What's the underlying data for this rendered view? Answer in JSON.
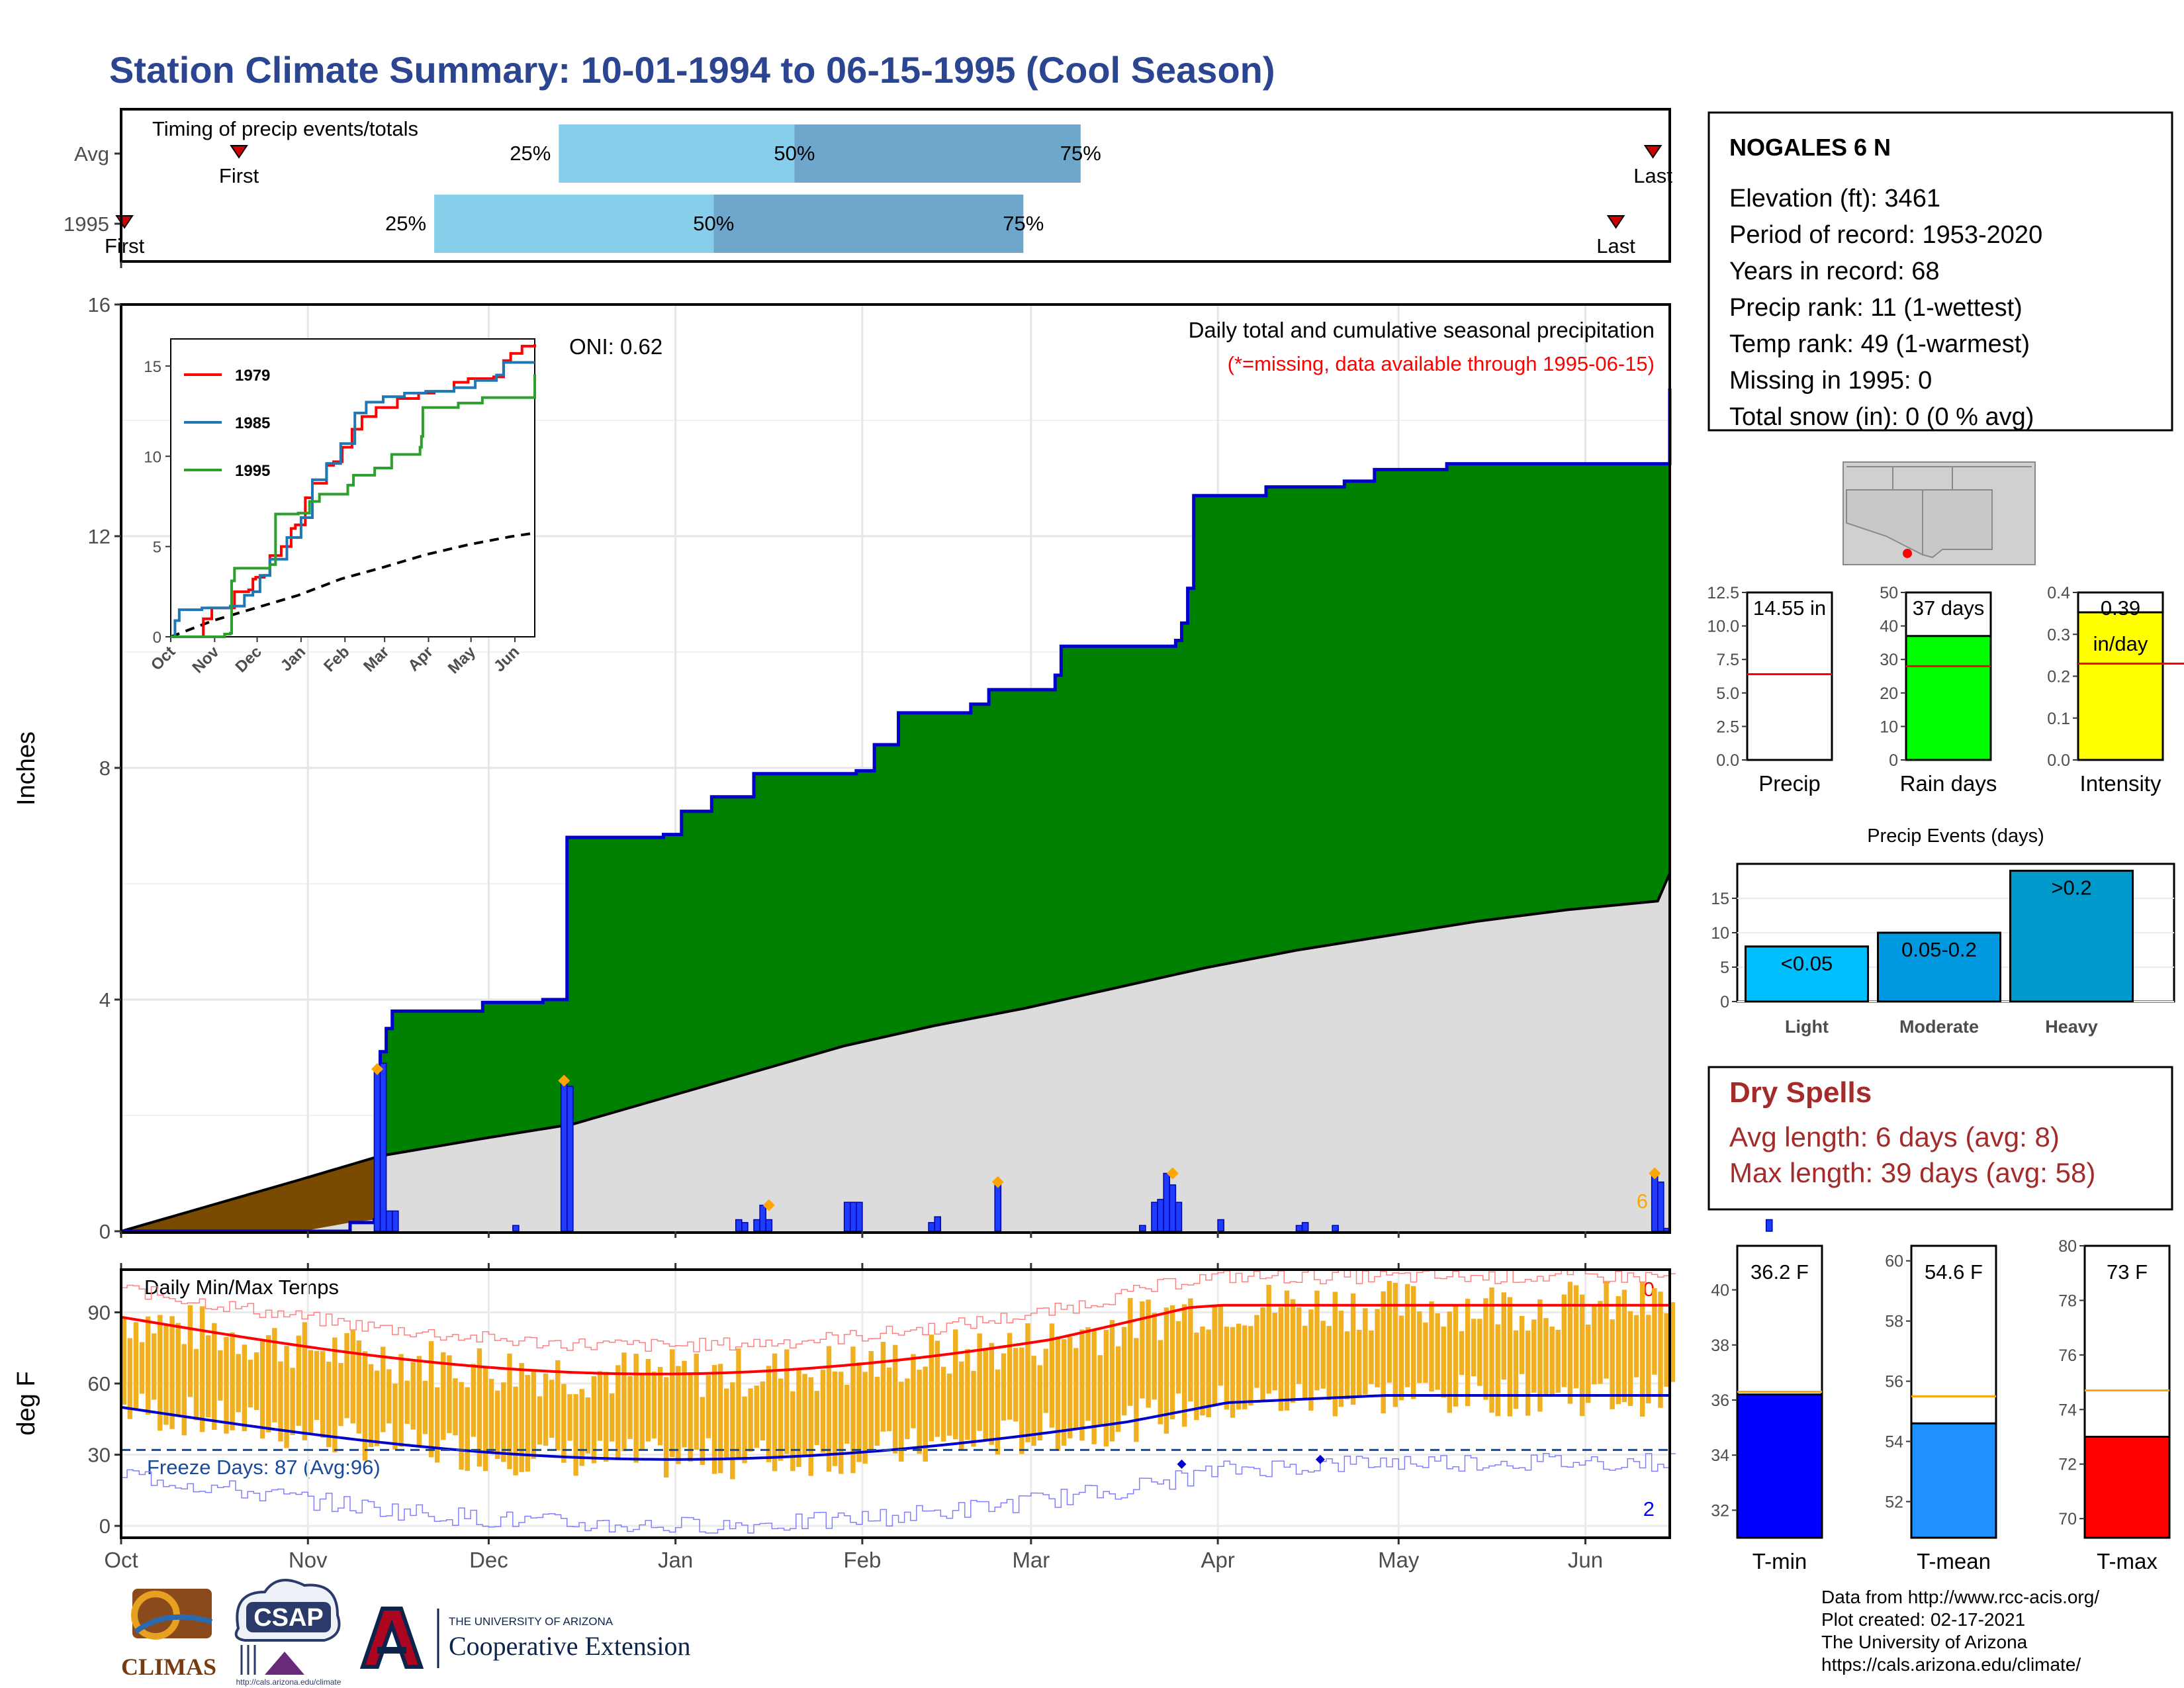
{
  "title": "Station Climate Summary: 10-01-1994 to 06-15-1995 (Cool Season)",
  "colors": {
    "title": "#2b4590",
    "precip_green": "#008000",
    "brown": "#7a4a00",
    "normal_gray": "#dcdcdc",
    "bar_blue": "#1e3cff",
    "marker_orange": "#ffa500",
    "rain_green": "#00ff00",
    "intensity_yellow": "#ffff00",
    "ref_red": "#ff0000",
    "events_blue": "#0099cc",
    "dry_spell_red": "#a52a2a",
    "tmin_blue": "#0000ff",
    "tmean_blue": "#1e90ff",
    "tmax_red": "#ff0000",
    "temp_bar": "#f0b020"
  },
  "timing": {
    "caption": "Timing of precip events/totals",
    "rows": [
      {
        "label": "Avg",
        "first_label": "First",
        "last_label": "Last",
        "p25": "25%",
        "p50": "50%",
        "p75": "75%",
        "first_day": 35,
        "q25_day": 130,
        "q50_day": 200,
        "q75_day": 285,
        "last_day": 455
      },
      {
        "label": "1995",
        "first_label": "First",
        "last_label": "Last",
        "p25": "25%",
        "p50": "50%",
        "p75": "75%",
        "first_day": 1,
        "q25_day": 93,
        "q50_day": 176,
        "q75_day": 268,
        "last_day": 444
      }
    ]
  },
  "station": {
    "name": "NOGALES 6 N",
    "lines": [
      "Elevation (ft): 3461",
      "Period of record: 1953-2020",
      "Years in record: 68",
      "Precip rank: 11 (1-wettest)",
      "Temp rank: 49 (1-warmest)",
      "Missing in 1995: 0",
      "Total snow (in): 0 (0 % avg)"
    ]
  },
  "chart_data": [
    {
      "type": "area",
      "name": "main_precip",
      "title": "Daily total and cumulative seasonal precipitation",
      "subtitle": "(*=missing, data available through 1995-06-15)",
      "oni": "ONI: 0.62",
      "ylabel": "Inches",
      "ylim": [
        0,
        16
      ],
      "yticks": [
        0,
        4,
        8,
        12,
        16
      ],
      "xticks": [
        "Oct",
        "Nov",
        "Dec",
        "Jan",
        "Feb",
        "Mar",
        "Apr",
        "May",
        "Jun"
      ],
      "corner_note": "6",
      "cumulative_1995": [
        [
          0,
          0
        ],
        [
          30,
          0
        ],
        [
          38,
          0.15
        ],
        [
          42,
          0.2
        ],
        [
          43,
          3.1
        ],
        [
          44,
          3.5
        ],
        [
          45,
          3.8
        ],
        [
          60,
          3.95
        ],
        [
          70,
          4.0
        ],
        [
          74,
          6.8
        ],
        [
          90,
          6.85
        ],
        [
          93,
          7.25
        ],
        [
          98,
          7.5
        ],
        [
          105,
          7.9
        ],
        [
          122,
          7.95
        ],
        [
          125,
          8.4
        ],
        [
          129,
          8.95
        ],
        [
          141,
          9.1
        ],
        [
          144,
          9.35
        ],
        [
          155,
          9.6
        ],
        [
          156,
          10.1
        ],
        [
          175,
          10.2
        ],
        [
          176,
          10.5
        ],
        [
          177,
          11.1
        ],
        [
          178,
          12.7
        ],
        [
          190,
          12.85
        ],
        [
          203,
          12.95
        ],
        [
          208,
          13.15
        ],
        [
          220,
          13.25
        ],
        [
          271,
          13.8
        ],
        [
          272,
          14.4
        ],
        [
          290,
          14.45
        ],
        [
          291,
          14.55
        ],
        [
          257,
          14.55
        ]
      ],
      "normal_cumulative": [
        [
          0,
          0
        ],
        [
          15,
          0.45
        ],
        [
          30,
          0.9
        ],
        [
          43,
          1.3
        ],
        [
          60,
          1.6
        ],
        [
          75,
          1.85
        ],
        [
          90,
          2.3
        ],
        [
          105,
          2.75
        ],
        [
          120,
          3.2
        ],
        [
          135,
          3.55
        ],
        [
          150,
          3.85
        ],
        [
          165,
          4.2
        ],
        [
          180,
          4.55
        ],
        [
          195,
          4.85
        ],
        [
          210,
          5.1
        ],
        [
          225,
          5.35
        ],
        [
          240,
          5.55
        ],
        [
          255,
          5.7
        ],
        [
          270,
          5.8
        ],
        [
          285,
          5.9
        ],
        [
          300,
          5.98
        ],
        [
          315,
          6.05
        ],
        [
          330,
          6.12
        ],
        [
          347,
          6.18
        ],
        [
          348,
          6.18
        ]
      ],
      "daily_bars": [
        [
          42,
          2.8
        ],
        [
          43,
          2.9
        ],
        [
          44,
          0.35
        ],
        [
          45,
          0.35
        ],
        [
          65,
          0.1
        ],
        [
          73,
          2.6
        ],
        [
          74,
          2.5
        ],
        [
          102,
          0.2
        ],
        [
          103,
          0.15
        ],
        [
          105,
          0.2
        ],
        [
          106,
          0.45
        ],
        [
          107,
          0.2
        ],
        [
          120,
          0.5
        ],
        [
          121,
          0.5
        ],
        [
          122,
          0.5
        ],
        [
          134,
          0.15
        ],
        [
          135,
          0.25
        ],
        [
          145,
          0.85
        ],
        [
          169,
          0.1
        ],
        [
          171,
          0.5
        ],
        [
          172,
          0.55
        ],
        [
          173,
          1.0
        ],
        [
          174,
          0.8
        ],
        [
          175,
          0.5
        ],
        [
          182,
          0.2
        ],
        [
          195,
          0.1
        ],
        [
          196,
          0.15
        ],
        [
          201,
          0.1
        ],
        [
          254,
          1.0
        ],
        [
          255,
          0.85
        ],
        [
          256,
          0.05
        ],
        [
          273,
          0.2
        ]
      ],
      "markers": [
        [
          42,
          2.8
        ],
        [
          73,
          2.6
        ],
        [
          107,
          0.45
        ],
        [
          145,
          0.85
        ],
        [
          174,
          1.0
        ],
        [
          254,
          1.0
        ]
      ]
    },
    {
      "type": "line",
      "name": "inset_cumulative",
      "xticks": [
        "Oct",
        "Nov",
        "Dec",
        "Jan",
        "Feb",
        "Mar",
        "Apr",
        "May",
        "Jun"
      ],
      "yticks": [
        0,
        5,
        10,
        15
      ],
      "ylim": [
        0,
        16
      ],
      "series": [
        {
          "name": "1979",
          "color": "#ff0000",
          "values": [
            [
              0,
              0
            ],
            [
              22,
              0
            ],
            [
              23,
              1
            ],
            [
              27,
              1
            ],
            [
              29,
              1.6
            ],
            [
              44,
              1.6
            ],
            [
              45,
              2.5
            ],
            [
              55,
              2.6
            ],
            [
              58,
              3.2
            ],
            [
              60,
              3.3
            ],
            [
              66,
              3.4
            ],
            [
              70,
              4.5
            ],
            [
              78,
              5
            ],
            [
              85,
              6
            ],
            [
              88,
              6.2
            ],
            [
              95,
              7.7
            ],
            [
              100,
              8.5
            ],
            [
              110,
              9.5
            ],
            [
              115,
              9.7
            ],
            [
              121,
              10.5
            ],
            [
              128,
              11.5
            ],
            [
              135,
              12.2
            ],
            [
              145,
              12.7
            ],
            [
              160,
              13.2
            ],
            [
              175,
              13.5
            ],
            [
              186,
              13.6
            ],
            [
              200,
              14.1
            ],
            [
              210,
              14.3
            ],
            [
              228,
              14.4
            ],
            [
              235,
              15.3
            ],
            [
              240,
              15.7
            ],
            [
              248,
              16.1
            ],
            [
              257,
              16.2
            ]
          ]
        },
        {
          "name": "1985",
          "color": "#1f77b4",
          "values": [
            [
              0,
              0
            ],
            [
              3,
              0.9
            ],
            [
              6,
              1.5
            ],
            [
              22,
              1.6
            ],
            [
              30,
              1.6
            ],
            [
              42,
              1.7
            ],
            [
              52,
              2.3
            ],
            [
              58,
              2.5
            ],
            [
              63,
              3.4
            ],
            [
              70,
              4.3
            ],
            [
              82,
              5.5
            ],
            [
              92,
              6.6
            ],
            [
              100,
              8.7
            ],
            [
              110,
              9.6
            ],
            [
              120,
              10.7
            ],
            [
              130,
              12.4
            ],
            [
              138,
              13
            ],
            [
              150,
              13.3
            ],
            [
              165,
              13.5
            ],
            [
              180,
              13.6
            ],
            [
              200,
              13.8
            ],
            [
              215,
              14.2
            ],
            [
              230,
              14.5
            ],
            [
              235,
              15.2
            ],
            [
              245,
              15.2
            ],
            [
              257,
              15.2
            ]
          ]
        },
        {
          "name": "1995",
          "color": "#2ca02c",
          "values": [
            [
              0,
              0
            ],
            [
              30,
              0
            ],
            [
              38,
              0.15
            ],
            [
              42,
              0.2
            ],
            [
              43,
              3.1
            ],
            [
              45,
              3.8
            ],
            [
              70,
              4.0
            ],
            [
              74,
              6.8
            ],
            [
              90,
              6.85
            ],
            [
              98,
              7.5
            ],
            [
              105,
              7.9
            ],
            [
              125,
              8.4
            ],
            [
              129,
              8.95
            ],
            [
              144,
              9.35
            ],
            [
              156,
              10.1
            ],
            [
              176,
              10.5
            ],
            [
              177,
              11.1
            ],
            [
              178,
              12.7
            ],
            [
              203,
              12.95
            ],
            [
              220,
              13.25
            ],
            [
              271,
              13.8
            ],
            [
              272,
              14.4
            ],
            [
              291,
              14.55
            ],
            [
              257,
              14.55
            ]
          ]
        }
      ],
      "normal": [
        [
          0,
          0
        ],
        [
          30,
          0.9
        ],
        [
          60,
          1.6
        ],
        [
          90,
          2.3
        ],
        [
          120,
          3.2
        ],
        [
          150,
          3.85
        ],
        [
          180,
          4.55
        ],
        [
          210,
          5.1
        ],
        [
          240,
          5.55
        ],
        [
          257,
          5.75
        ]
      ]
    },
    {
      "type": "bar",
      "name": "precip_totals",
      "panels": [
        {
          "xlabel": "Precip",
          "value": 14.55,
          "label": "14.55 in",
          "ref": 6.4,
          "ymax": 12.5,
          "yticks": [
            "0.0",
            "2.5",
            "5.0",
            "7.5",
            "10.0",
            "12.5"
          ],
          "ticks": [
            0,
            2.5,
            5,
            7.5,
            10,
            12.5
          ],
          "color": "#ffffff"
        },
        {
          "xlabel": "Rain days",
          "value": 37,
          "label": "37 days",
          "ref": 28,
          "ymax": 50,
          "yticks": [
            "0",
            "10",
            "20",
            "30",
            "40",
            "50"
          ],
          "ticks": [
            0,
            10,
            20,
            30,
            40,
            50
          ],
          "color": "#00ff00"
        },
        {
          "xlabel": "Intensity",
          "value": 0.39,
          "label": "0.39",
          "label2": "in/day",
          "ref": 0.23,
          "ymax": 0.4,
          "yticks": [
            "0.0",
            "0.1",
            "0.2",
            "0.3",
            "0.4"
          ],
          "ticks": [
            0,
            0.1,
            0.2,
            0.3,
            0.4
          ],
          "color": "#ffff00"
        }
      ]
    },
    {
      "type": "bar",
      "name": "precip_events",
      "title": "Precip Events (days)",
      "categories": [
        "Light",
        "Moderate",
        "Heavy"
      ],
      "bar_labels": [
        "<0.05",
        "0.05-0.2",
        ">0.2"
      ],
      "values": [
        8,
        10,
        19
      ],
      "yticks": [
        0,
        5,
        10,
        15
      ],
      "ylim": [
        0,
        20
      ]
    },
    {
      "type": "bar",
      "name": "daily_temps",
      "title": "Daily Min/Max Temps",
      "ylabel": "deg F",
      "ylim": [
        -5,
        108
      ],
      "yticks": [
        0,
        30,
        60,
        90
      ],
      "freeze_label": "Freeze Days: 87 (Avg:96)",
      "top_note": "0",
      "bottom_note": "2",
      "xticks": [
        "Oct",
        "Nov",
        "Dec",
        "Jan",
        "Feb",
        "Mar",
        "Apr",
        "May",
        "Jun"
      ]
    },
    {
      "type": "bar",
      "name": "temp_summary",
      "panels": [
        {
          "xlabel": "T-min",
          "value": 36.2,
          "label": "36.2 F",
          "ref": 36.3,
          "ymin": 31,
          "ymax": 41.6,
          "ticks": [
            32,
            34,
            36,
            38,
            40
          ],
          "color": "#0000ff"
        },
        {
          "xlabel": "T-mean",
          "value": 54.6,
          "label": "54.6 F",
          "ref": 55.5,
          "ymin": 50.8,
          "ymax": 60.5,
          "ticks": [
            52,
            54,
            56,
            58,
            60
          ],
          "color": "#1e90ff"
        },
        {
          "xlabel": "T-max",
          "value": 73,
          "label": "73 F",
          "ref": 74.7,
          "ymin": 69.3,
          "ymax": 80,
          "ticks": [
            70,
            72,
            74,
            76,
            78,
            80
          ],
          "color": "#ff0000"
        }
      ]
    }
  ],
  "dry_spells": {
    "title": "Dry Spells",
    "avg": "Avg length: 6 days (avg: 8)",
    "max": "Max length: 39 days (avg: 58)"
  },
  "credits": {
    "lines": [
      "Data from http://www.rcc-acis.org/",
      "Plot created: 02-17-2021",
      "The University of Arizona",
      "https://cals.arizona.edu/climate/"
    ]
  },
  "logos": {
    "climas": "CLIMAS",
    "csap": "CSAP",
    "csap_url": "http://cals.arizona.edu/climate",
    "ua_small": "THE UNIVERSITY OF ARIZONA",
    "ua_big": "Cooperative Extension"
  }
}
